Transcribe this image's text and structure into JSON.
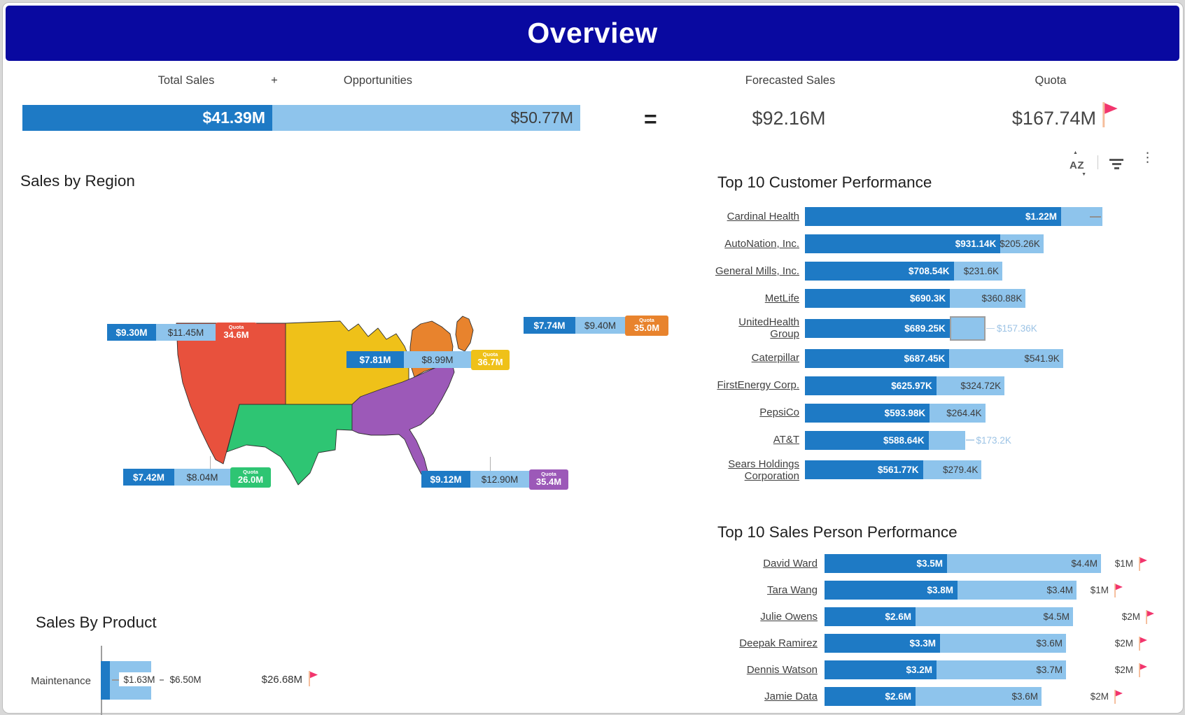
{
  "header": {
    "title": "Overview"
  },
  "kpi": {
    "total_sales_label": "Total Sales",
    "plus": "+",
    "opportunities_label": "Opportunities",
    "equals": "=",
    "forecasted_label": "Forecasted Sales",
    "quota_label": "Quota",
    "total_sales_value": "$41.39M",
    "opportunities_value": "$50.77M",
    "forecasted_value": "$92.16M",
    "quota_value": "$167.74M"
  },
  "toolbar": {
    "icons": [
      "sort-az",
      "filter",
      "more-options"
    ]
  },
  "sections": {
    "region_title": "Sales by Region",
    "customer_title": "Top 10 Customer Performance",
    "salesperson_title": "Top 10 Sales Person Performance",
    "product_title": "Sales By Product"
  },
  "product": {
    "category": "Maintenance",
    "sales": "$1.63M",
    "forecast": "$6.50M",
    "quota": "$26.68M"
  },
  "colors": {
    "banner": "#0909A0",
    "bar_dark": "#1E7AC5",
    "bar_light": "#8EC4EC",
    "flag": "#F2356D",
    "flag_pole": "#F5BD9B",
    "pale_label": "#9CC3E5",
    "west": "#E8513D",
    "central": "#EFC119",
    "northeast": "#E8832D",
    "south": "#2EC573",
    "southeast": "#9C59B8"
  },
  "chart_data": [
    {
      "id": "kpi_bullet",
      "type": "bar",
      "title": "Total Sales + Opportunities = Forecasted Sales",
      "series": [
        {
          "name": "Total Sales",
          "value_m": 41.39,
          "label": "$41.39M"
        },
        {
          "name": "Opportunities",
          "value_m": 50.77,
          "label": "$50.77M"
        }
      ],
      "forecasted_m": 92.16,
      "quota_m": 167.74
    },
    {
      "id": "region_map",
      "type": "map",
      "title": "Sales by Region",
      "regions": [
        {
          "name": "West",
          "color": "#E8513D",
          "sales_label": "$9.30M",
          "opp_label": "$11.45M",
          "quota_caption": "Quota",
          "quota_label": "34.6M",
          "sales_m": 9.3,
          "opp_m": 11.45,
          "quota_m": 34.6
        },
        {
          "name": "Central",
          "color": "#EFC119",
          "sales_label": "$7.81M",
          "opp_label": "$8.99M",
          "quota_caption": "Quota",
          "quota_label": "36.7M",
          "sales_m": 7.81,
          "opp_m": 8.99,
          "quota_m": 36.7
        },
        {
          "name": "Northeast",
          "color": "#E8832D",
          "sales_label": "$7.74M",
          "opp_label": "$9.40M",
          "quota_caption": "Quota",
          "quota_label": "35.0M",
          "sales_m": 7.74,
          "opp_m": 9.4,
          "quota_m": 35.0
        },
        {
          "name": "South",
          "color": "#2EC573",
          "sales_label": "$7.42M",
          "opp_label": "$8.04M",
          "quota_caption": "Quota",
          "quota_label": "26.0M",
          "sales_m": 7.42,
          "opp_m": 8.04,
          "quota_m": 26.0
        },
        {
          "name": "Southeast",
          "color": "#9C59B8",
          "sales_label": "$9.12M",
          "opp_label": "$12.90M",
          "quota_caption": "Quota",
          "quota_label": "35.4M",
          "sales_m": 9.12,
          "opp_m": 12.9,
          "quota_m": 35.4
        }
      ]
    },
    {
      "id": "customers",
      "type": "bullet",
      "title": "Top 10 Customer Performance",
      "rows": [
        {
          "label": "Cardinal Health",
          "sales_k": 1220,
          "sales_label": "$1.22M",
          "opp_k": 195,
          "opp_label": "",
          "marker": true
        },
        {
          "label": "AutoNation, Inc.",
          "sales_k": 931.14,
          "sales_label": "$931.14K",
          "opp_k": 205.26,
          "opp_label": "$205.26K"
        },
        {
          "label": "General Mills, Inc.",
          "sales_k": 708.54,
          "sales_label": "$708.54K",
          "opp_k": 231.6,
          "opp_label": "$231.6K"
        },
        {
          "label": "MetLife",
          "sales_k": 690.3,
          "sales_label": "$690.3K",
          "opp_k": 360.88,
          "opp_label": "$360.88K"
        },
        {
          "label": "UnitedHealth Group",
          "sales_k": 689.25,
          "sales_label": "$689.25K",
          "opp_k": 157.36,
          "opp_label": "$157.36K",
          "outside": true,
          "selected": true
        },
        {
          "label": "Caterpillar",
          "sales_k": 687.45,
          "sales_label": "$687.45K",
          "opp_k": 541.9,
          "opp_label": "$541.9K"
        },
        {
          "label": "FirstEnergy Corp.",
          "sales_k": 625.97,
          "sales_label": "$625.97K",
          "opp_k": 324.72,
          "opp_label": "$324.72K"
        },
        {
          "label": "PepsiCo",
          "sales_k": 593.98,
          "sales_label": "$593.98K",
          "opp_k": 264.4,
          "opp_label": "$264.4K"
        },
        {
          "label": "AT&T",
          "sales_k": 588.64,
          "sales_label": "$588.64K",
          "opp_k": 173.2,
          "opp_label": "$173.2K",
          "outside": true
        },
        {
          "label": "Sears Holdings Corporation",
          "sales_k": 561.77,
          "sales_label": "$561.77K",
          "opp_k": 279.4,
          "opp_label": "$279.4K"
        }
      ]
    },
    {
      "id": "salespersons",
      "type": "bullet",
      "title": "Top 10 Sales Person Performance",
      "rows": [
        {
          "label": "David Ward",
          "sales_m": 3.5,
          "opp_m": 4.4,
          "quota_m": 1,
          "sales_label": "$3.5M",
          "opp_label": "$4.4M",
          "quota_label": "$1M"
        },
        {
          "label": "Tara Wang",
          "sales_m": 3.8,
          "opp_m": 3.4,
          "quota_m": 1,
          "sales_label": "$3.8M",
          "opp_label": "$3.4M",
          "quota_label": "$1M"
        },
        {
          "label": "Julie Owens",
          "sales_m": 2.6,
          "opp_m": 4.5,
          "quota_m": 2,
          "sales_label": "$2.6M",
          "opp_label": "$4.5M",
          "quota_label": "$2M"
        },
        {
          "label": "Deepak Ramirez",
          "sales_m": 3.3,
          "opp_m": 3.6,
          "quota_m": 2,
          "sales_label": "$3.3M",
          "opp_label": "$3.6M",
          "quota_label": "$2M"
        },
        {
          "label": "Dennis Watson",
          "sales_m": 3.2,
          "opp_m": 3.7,
          "quota_m": 2,
          "sales_label": "$3.2M",
          "opp_label": "$3.7M",
          "quota_label": "$2M"
        },
        {
          "label": "Jamie Data",
          "sales_m": 2.6,
          "opp_m": 3.6,
          "quota_m": 2,
          "sales_label": "$2.6M",
          "opp_label": "$3.6M",
          "quota_label": "$2M"
        }
      ]
    },
    {
      "id": "products",
      "type": "bullet",
      "title": "Sales By Product",
      "rows": [
        {
          "label": "Maintenance",
          "sales_m": 1.63,
          "sales_label": "$1.63M",
          "forecast_m": 6.5,
          "forecast_label": "$6.50M",
          "quota_m": 26.68,
          "quota_label": "$26.68M",
          "flag": true
        }
      ]
    }
  ]
}
